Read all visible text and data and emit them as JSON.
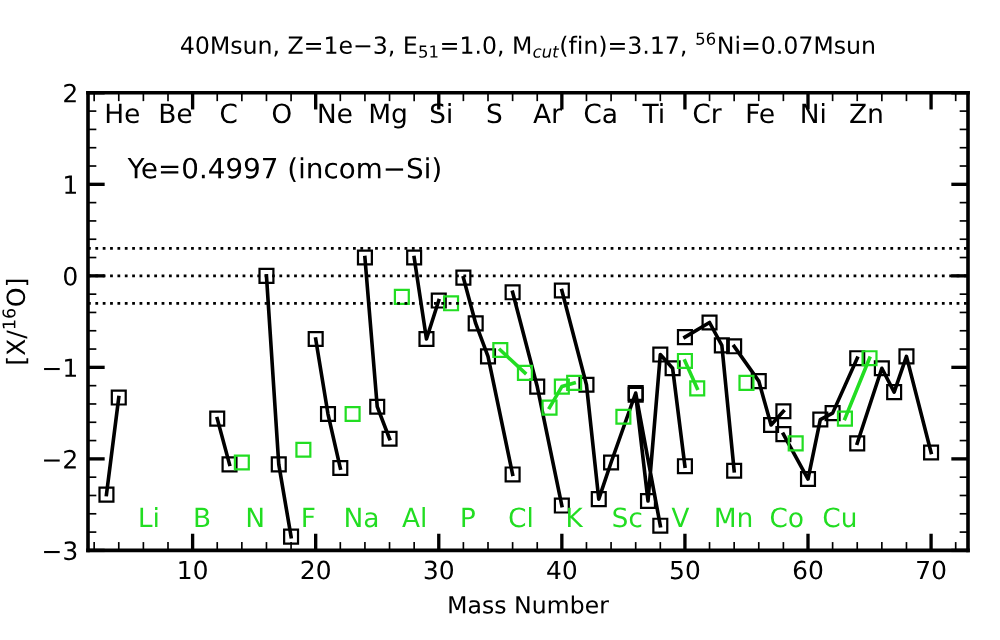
{
  "chart_data": {
    "type": "line",
    "title": "40Msun, Z=1e−3, E$_{51}$=1.0, M$_{cut}$(fin)=3.17, $^{56}$Ni=0.07Msun",
    "xlabel": "Mass Number",
    "ylabel": "[X/$^{16}$O]",
    "xlim": [
      1.5,
      73
    ],
    "ylim": [
      -3,
      2
    ],
    "xticks": [
      10,
      20,
      30,
      40,
      50,
      60,
      70
    ],
    "yticks": [
      -3,
      -2,
      -1,
      0,
      1,
      2
    ],
    "marker": "square",
    "line_style": "solid",
    "grid": false,
    "series": [
      {
        "color": "#000000",
        "x": [
          3,
          4,
          null,
          12,
          13,
          null,
          16,
          17,
          18,
          null,
          20,
          21,
          22,
          null,
          24,
          25,
          26,
          null,
          28,
          29,
          30,
          null,
          32,
          33,
          34,
          36,
          null,
          36,
          38,
          40,
          null,
          40,
          42,
          43,
          44,
          46,
          48,
          null,
          46,
          47,
          48,
          49,
          50,
          null,
          50,
          52,
          53,
          54,
          null,
          54,
          56,
          57,
          58,
          null,
          58,
          60,
          61,
          62,
          64,
          null,
          64,
          66,
          67,
          68,
          70
        ],
        "values": [
          -2.39,
          -1.33,
          null,
          -1.56,
          -2.06,
          null,
          0.0,
          -2.06,
          -2.85,
          null,
          -0.69,
          -1.51,
          -2.1,
          null,
          0.2,
          -1.43,
          -1.78,
          null,
          0.2,
          -0.69,
          -0.27,
          null,
          -0.02,
          -0.52,
          -0.88,
          -2.17,
          null,
          -0.18,
          -1.21,
          -2.51,
          null,
          -0.16,
          -1.19,
          -2.44,
          -2.04,
          -1.28,
          -2.73,
          null,
          -1.3,
          -2.46,
          -0.86,
          -1.01,
          -2.08,
          null,
          -0.67,
          -0.51,
          -0.76,
          -2.13,
          null,
          -0.77,
          -1.15,
          -1.63,
          -1.48,
          null,
          -1.73,
          -2.22,
          -1.57,
          -1.5,
          -0.9,
          null,
          -1.83,
          -1.01,
          -1.27,
          -0.88,
          -1.93
        ]
      },
      {
        "color": "#22dd22",
        "x": [
          14,
          null,
          19,
          null,
          23,
          null,
          27,
          null,
          31,
          null,
          35,
          37,
          null,
          39,
          40,
          41,
          null,
          45,
          null,
          50,
          51,
          null,
          55,
          null,
          59,
          null,
          63,
          65
        ],
        "values": [
          -2.04,
          null,
          -1.9,
          null,
          -1.51,
          null,
          -0.23,
          null,
          -0.3,
          null,
          -0.81,
          -1.06,
          null,
          -1.44,
          -1.21,
          -1.17,
          null,
          -1.54,
          null,
          -0.93,
          -1.23,
          null,
          -1.17,
          null,
          -1.83,
          null,
          -1.56,
          -0.9
        ]
      }
    ],
    "ref_lines": [
      {
        "axis": "y",
        "value": 0.3,
        "line_style": "dotted",
        "color": "#000000"
      },
      {
        "axis": "y",
        "value": 0,
        "line_style": "dotted",
        "color": "#000000"
      },
      {
        "axis": "y",
        "value": -0.3,
        "line_style": "dotted",
        "color": "#000000"
      }
    ],
    "annotations": [
      "Ye=0.4997 (incom−Si)",
      "He",
      "Li",
      "Be",
      "B",
      "C",
      "N",
      "O",
      "F",
      "Ne",
      "Na",
      "Mg",
      "Al",
      "Si",
      "P",
      "S",
      "Cl",
      "Ar",
      "K",
      "Ca",
      "Sc",
      "Ti",
      "V",
      "Cr",
      "Mn",
      "Fe",
      "Co",
      "Ni",
      "Cu",
      "Zn"
    ]
  }
}
